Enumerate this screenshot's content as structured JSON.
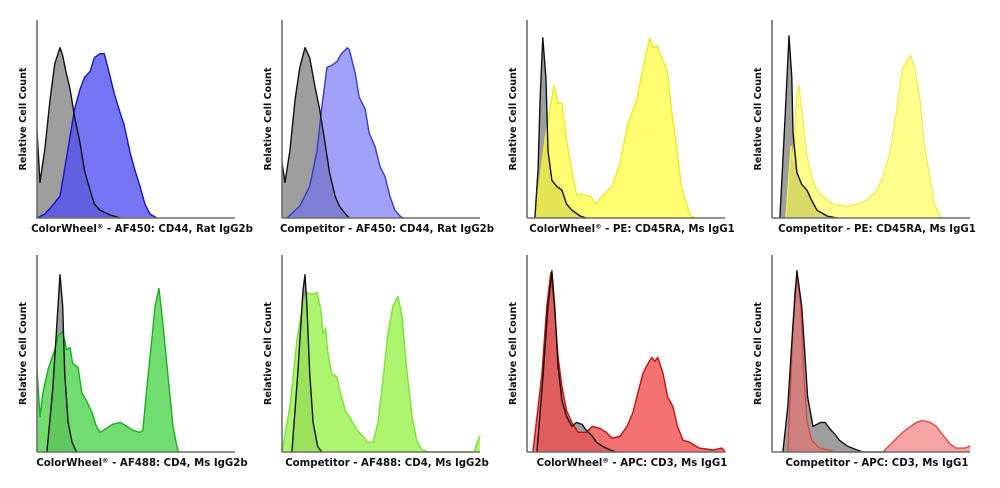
{
  "figure": {
    "description": "Flow cytometry histogram overlays: ColorWheel vs Competitor",
    "background": "#ffffff"
  },
  "chart_data": [
    {
      "type": "area",
      "title": "ColorWheel® - AF450: CD44, Rat IgG2b",
      "xlabel": "ColorWheel® - AF450: CD44, Rat IgG2b",
      "ylabel": "Relative Cell Count",
      "xlim": [
        0,
        100
      ],
      "ylim": [
        0,
        100
      ],
      "grid": false,
      "legend": "none",
      "series": [
        {
          "name": "control",
          "fill": "#9e9e9e",
          "stroke": "#111111",
          "fill_opacity": 1,
          "x": [
            0,
            1.5,
            4,
            6.6,
            9,
            11.6,
            13,
            14.6,
            16.7,
            19,
            21.7,
            24,
            26.8,
            29,
            31.8,
            37,
            42
          ],
          "y": [
            44,
            18,
            35,
            60,
            78,
            86,
            82,
            74,
            65,
            51,
            38,
            24,
            14,
            7,
            4,
            1.5,
            0
          ]
        },
        {
          "name": "stained",
          "fill": "#5050f2",
          "stroke": "#1414c4",
          "fill_opacity": 0.78,
          "x": [
            0,
            4,
            7.6,
            11.6,
            15,
            19,
            21.7,
            24,
            26.8,
            29,
            31.8,
            34,
            37,
            39,
            42,
            44,
            47,
            49.5,
            52,
            54.5,
            57,
            60.6
          ],
          "y": [
            0,
            2,
            6,
            11,
            31,
            55,
            65,
            71,
            74,
            81,
            83,
            83,
            71,
            63,
            53,
            47,
            33,
            24,
            16,
            7,
            2,
            0
          ]
        }
      ]
    },
    {
      "type": "area",
      "title": "Competitor - AF450: CD44, Rat IgG2b",
      "xlabel": "Competitor - AF450: CD44, Rat IgG2b",
      "ylabel": "Relative Cell Count",
      "xlim": [
        0,
        100
      ],
      "ylim": [
        0,
        100
      ],
      "grid": false,
      "legend": "none",
      "series": [
        {
          "name": "control",
          "fill": "#9e9e9e",
          "stroke": "#111111",
          "fill_opacity": 1,
          "x": [
            0,
            1.5,
            4,
            6.6,
            9,
            11.6,
            14,
            16.7,
            19,
            21.7,
            24,
            26.8,
            29,
            32,
            34
          ],
          "y": [
            28,
            18,
            34,
            60,
            76,
            86,
            81,
            66,
            55,
            38,
            23,
            11,
            6,
            2,
            0
          ]
        },
        {
          "name": "stained",
          "fill": "#6e6ef2",
          "stroke": "#3a3ad0",
          "fill_opacity": 0.65,
          "x": [
            2.5,
            9,
            14,
            17.7,
            20,
            22.7,
            25,
            27.8,
            30,
            33,
            34,
            37,
            39,
            42,
            44,
            47,
            49.5,
            52,
            54.5,
            57,
            59.6,
            61
          ],
          "y": [
            0,
            6,
            16,
            34,
            55,
            76,
            77,
            79,
            83,
            86,
            85,
            73,
            61,
            55,
            43,
            36,
            26,
            21,
            11,
            4,
            1,
            0
          ]
        }
      ]
    },
    {
      "type": "area",
      "title": "ColorWheel® - PE: CD45RA, Ms IgG1",
      "xlabel": "ColorWheel® - PE: CD45RA, Ms IgG1",
      "ylabel": "Relative Cell Count",
      "xlim": [
        0,
        100
      ],
      "ylim": [
        0,
        100
      ],
      "grid": false,
      "legend": "none",
      "series": [
        {
          "name": "control",
          "fill": "#9e9e9e",
          "stroke": "#111111",
          "fill_opacity": 1,
          "x": [
            4,
            5.6,
            6.6,
            8,
            9.6,
            10.6,
            12.6,
            15,
            17.7,
            20,
            22.7,
            26.8,
            30
          ],
          "y": [
            0,
            25,
            60,
            91,
            70,
            34,
            19,
            16,
            14,
            7,
            4,
            1,
            0
          ]
        },
        {
          "name": "stained",
          "fill": "#ffff3a",
          "stroke": "#eaea2e",
          "fill_opacity": 0.72,
          "x": [
            4,
            9,
            11.6,
            13.6,
            15.7,
            17.7,
            20,
            22.7,
            25,
            28,
            31.8,
            35,
            38,
            43,
            47,
            51,
            55.5,
            58,
            60.6,
            62,
            63.6,
            65.7,
            68,
            70.7,
            73,
            75.8,
            78,
            80.8,
            83,
            85
          ],
          "y": [
            0,
            39,
            55,
            67,
            58,
            58,
            39,
            24,
            12,
            12,
            11,
            7,
            11,
            16,
            28,
            48,
            60,
            73,
            85,
            91,
            86,
            87,
            81,
            75,
            55,
            34,
            16,
            6,
            1,
            0
          ]
        }
      ]
    },
    {
      "type": "area",
      "title": "Competitor - PE: CD45RA, Ms IgG1",
      "xlabel": "Competitor - PE: CD45RA, Ms IgG1",
      "ylabel": "Relative Cell Count",
      "xlim": [
        0,
        100
      ],
      "ylim": [
        0,
        100
      ],
      "grid": false,
      "legend": "none",
      "series": [
        {
          "name": "control",
          "fill": "#9e9e9e",
          "stroke": "#111111",
          "fill_opacity": 1,
          "x": [
            4,
            6.6,
            8.6,
            10,
            10.6,
            12.6,
            15,
            17.7,
            20,
            22.7,
            27.8,
            33
          ],
          "y": [
            0,
            51,
            92,
            71,
            43,
            23,
            17,
            14,
            9,
            4,
            1,
            0
          ]
        },
        {
          "name": "stained",
          "fill": "#ffff48",
          "stroke": "#eeee5a",
          "fill_opacity": 0.62,
          "x": [
            7,
            9.6,
            10.6,
            12.6,
            13.6,
            15,
            17.7,
            20,
            22.7,
            25.8,
            30.8,
            37.9,
            43,
            48,
            53,
            56,
            59.6,
            63,
            66,
            68.7,
            70,
            72,
            74.7,
            77,
            80,
            82,
            85,
            86
          ],
          "y": [
            0,
            36,
            29,
            63,
            67,
            55,
            31,
            21,
            14,
            11,
            7,
            6,
            7,
            9,
            14,
            21,
            33,
            55,
            76,
            80,
            82,
            76,
            60,
            36,
            19,
            7,
            1,
            0
          ]
        }
      ]
    },
    {
      "type": "area",
      "title": "ColorWheel® - AF488: CD4, Ms IgG2b",
      "xlabel": "ColorWheel® - AF488: CD4, Ms IgG2b",
      "ylabel": "Relative Cell Count",
      "xlim": [
        0,
        100
      ],
      "ylim": [
        0,
        100
      ],
      "grid": false,
      "legend": "none",
      "series": [
        {
          "name": "control",
          "fill": "#9e9e9e",
          "stroke": "#111111",
          "fill_opacity": 1,
          "x": [
            5,
            8,
            10.6,
            11.6,
            13,
            14,
            15.7,
            17.7,
            20
          ],
          "y": [
            0,
            32,
            74,
            90,
            74,
            40,
            15,
            5,
            0
          ]
        },
        {
          "name": "stained",
          "fill": "#4ed44e",
          "stroke": "#1fae1f",
          "fill_opacity": 0.8,
          "x": [
            0,
            1.5,
            3,
            5.6,
            7.6,
            9,
            10.6,
            13,
            15,
            16.7,
            18,
            20.7,
            22.7,
            25,
            27.8,
            30,
            31.8,
            35,
            38,
            42,
            45.5,
            48.5,
            52,
            53.5,
            55.5,
            58,
            59.6,
            61.6,
            63.6,
            66,
            68.7,
            71,
            72
          ],
          "y": [
            42,
            18,
            30,
            42,
            48,
            52,
            59,
            61,
            52,
            53,
            45,
            43,
            30,
            26,
            20,
            13,
            10,
            12,
            14,
            15,
            13,
            11,
            10,
            11,
            33,
            57,
            74,
            83,
            65,
            40,
            13,
            1,
            0
          ]
        }
      ]
    },
    {
      "type": "area",
      "title": "Competitor - AF488: CD4, Ms IgG2b",
      "xlabel": "Competitor - AF488: CD4, Ms IgG2b",
      "ylabel": "Relative Cell Count",
      "xlim": [
        0,
        100
      ],
      "ylim": [
        0,
        100
      ],
      "grid": false,
      "legend": "none",
      "series": [
        {
          "name": "control",
          "fill": "#9e9e9e",
          "stroke": "#111111",
          "fill_opacity": 1,
          "x": [
            5,
            8,
            10.6,
            11.6,
            12.6,
            14,
            15.7,
            18,
            20
          ],
          "y": [
            0,
            40,
            82,
            90,
            74,
            40,
            15,
            3,
            0
          ]
        },
        {
          "name": "stained",
          "fill": "#98f24a",
          "stroke": "#7ee03a",
          "fill_opacity": 0.8,
          "x": [
            0,
            0.5,
            4,
            7.6,
            10.6,
            12.6,
            15,
            17.7,
            19.7,
            20.7,
            22,
            23,
            25,
            27.8,
            29,
            32,
            34,
            38,
            41,
            43,
            46,
            48.5,
            51,
            53.5,
            56,
            58.6,
            60.6,
            63,
            65.7,
            68,
            70.7,
            75,
            97,
            99,
            100
          ],
          "y": [
            0,
            3,
            23,
            57,
            76,
            81,
            80,
            81,
            72,
            60,
            63,
            52,
            40,
            38,
            32,
            21,
            18,
            11,
            8,
            5,
            5,
            15,
            37,
            60,
            74,
            79,
            69,
            42,
            18,
            6,
            1,
            0,
            0,
            6,
            8
          ]
        }
      ]
    },
    {
      "type": "area",
      "title": "ColorWheel® - APC: CD3, Ms IgG1",
      "xlabel": "ColorWheel® - APC: CD3, Ms IgG1",
      "ylabel": "Relative Cell Count",
      "xlim": [
        0,
        100
      ],
      "ylim": [
        0,
        100
      ],
      "grid": false,
      "legend": "none",
      "series": [
        {
          "name": "control",
          "fill": "#9e9e9e",
          "stroke": "#111111",
          "fill_opacity": 1,
          "x": [
            5,
            8,
            10.6,
            12.6,
            14,
            15.7,
            17.7,
            20,
            22.7,
            25,
            27.8,
            30,
            33,
            35,
            38,
            42,
            45
          ],
          "y": [
            0,
            37,
            74,
            92,
            74,
            43,
            26,
            18,
            13,
            15,
            14,
            11,
            8,
            5,
            3,
            1,
            0
          ]
        },
        {
          "name": "stained",
          "fill": "#f24a4a",
          "stroke": "#c51010",
          "fill_opacity": 0.78,
          "x": [
            3,
            7.6,
            10,
            12,
            13.6,
            15.7,
            17.7,
            20,
            22.7,
            25.8,
            30,
            33,
            37,
            40,
            43,
            47,
            50.5,
            53.5,
            56,
            58.6,
            60.6,
            63,
            64.6,
            66,
            68.7,
            71,
            73.7,
            76,
            78.8,
            82,
            87,
            94,
            98.5,
            100
          ],
          "y": [
            0,
            40,
            74,
            91,
            77,
            48,
            33,
            21,
            15,
            10,
            10,
            13,
            12,
            10,
            7,
            8,
            13,
            20,
            30,
            40,
            44,
            48,
            46,
            48,
            40,
            28,
            23,
            13,
            6,
            5,
            2,
            1,
            2,
            0
          ]
        }
      ]
    },
    {
      "type": "area",
      "title": "Competitor - APC: CD3, Ms IgG1",
      "xlabel": "Competitor - APC: CD3, Ms IgG1",
      "ylabel": "Relative Cell Count",
      "xlim": [
        0,
        100
      ],
      "ylim": [
        0,
        100
      ],
      "grid": false,
      "legend": "none",
      "series": [
        {
          "name": "control",
          "fill": "#9e9e9e",
          "stroke": "#111111",
          "fill_opacity": 1,
          "x": [
            5.5,
            8,
            10.6,
            12.6,
            15,
            16.7,
            18,
            20.7,
            22.7,
            24.7,
            26.8,
            29,
            31.8,
            34,
            38,
            43,
            46
          ],
          "y": [
            0,
            23,
            65,
            92,
            74,
            48,
            28,
            13,
            14,
            15,
            15,
            12,
            9,
            6,
            3,
            1,
            0
          ]
        },
        {
          "name": "stained",
          "fill": "#f06e6e",
          "stroke": "#e04848",
          "fill_opacity": 0.62,
          "x": [
            8,
            10,
            11.6,
            12.6,
            14.6,
            16,
            17.7,
            20,
            24,
            33,
            56,
            61,
            66,
            70,
            73,
            76,
            80,
            83,
            86,
            90,
            93,
            97.5,
            100
          ],
          "y": [
            0,
            48,
            82,
            89,
            74,
            40,
            16,
            6,
            2,
            0,
            0,
            5,
            10,
            13,
            15,
            16,
            15,
            13,
            9,
            4,
            2,
            2,
            3
          ]
        }
      ]
    }
  ]
}
